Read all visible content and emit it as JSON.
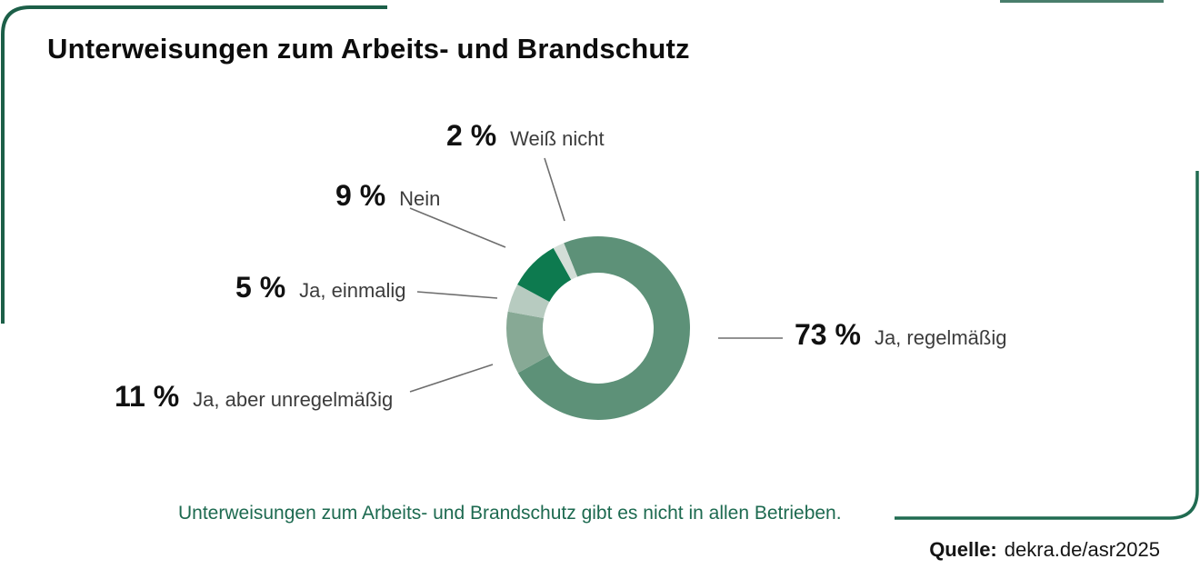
{
  "header": {
    "title": "Unterweisungen zum Arbeits- und Brandschutz"
  },
  "chart_data": {
    "type": "pie",
    "variant": "donut",
    "title": "Unterweisungen zum Arbeits- und Brandschutz",
    "unit": "%",
    "start_angle_deg": -22,
    "legend_position": "callouts",
    "segments": [
      {
        "label": "Ja, regelmäßig",
        "value": 73,
        "color": "#5d9178"
      },
      {
        "label": "Ja, aber unregelmäßig",
        "value": 11,
        "color": "#87a995"
      },
      {
        "label": "Ja, einmalig",
        "value": 5,
        "color": "#b7cbc0"
      },
      {
        "label": "Nein",
        "value": 9,
        "color": "#0d7a4f"
      },
      {
        "label": "Weiß nicht",
        "value": 2,
        "color": "#d3ded7"
      }
    ]
  },
  "callouts": [
    {
      "id": "weiss-nicht",
      "pct": "2 %",
      "label": "Weiß nicht"
    },
    {
      "id": "nein",
      "pct": "9 %",
      "label": "Nein"
    },
    {
      "id": "einmalig",
      "pct": "5 %",
      "label": "Ja, einmalig"
    },
    {
      "id": "unregelmaessig",
      "pct": "11 %",
      "label": "Ja, aber unregelmäßig"
    },
    {
      "id": "regelmaessig",
      "pct": "73 %",
      "label": "Ja, regelmäßig"
    }
  ],
  "caption": "Unterweisungen zum Arbeits- und Brandschutz gibt es nicht in allen Betrieben.",
  "source": {
    "label": "Quelle:",
    "value": "dekra.de/asr2025"
  },
  "colors": {
    "frame_green": "#1c5f48",
    "caption_green": "#1d6a50",
    "leader_gray": "#6e6e6e",
    "background": "#ffffff"
  }
}
